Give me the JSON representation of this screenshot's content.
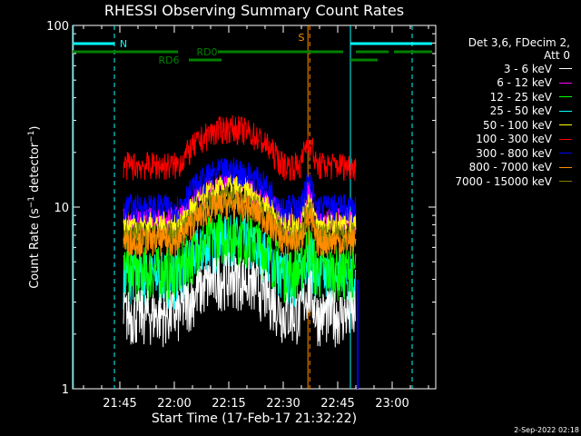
{
  "chart_data": {
    "type": "line",
    "title": "RHESSI Observing Summary Count Rates",
    "xlabel": "Start Time (17-Feb-17 21:32:22)",
    "ylabel": "Count Rate (s",
    "ylabel_sup": "−1",
    "ylabel_tail": " detector",
    "ylabel_sup2": "−1",
    "ylabel_end": ")",
    "yscale": "log",
    "ylim": [
      1,
      100
    ],
    "yticks": [
      "1",
      "10",
      "100"
    ],
    "xlim": [
      "21:32",
      "23:12"
    ],
    "xticks": [
      "21:45",
      "22:00",
      "22:15",
      "22:30",
      "22:45",
      "23:00"
    ],
    "legend_header": [
      "Det 3,6, FDecim 2,",
      "Att 0"
    ],
    "series": [
      {
        "name": "3 - 6 keV",
        "color": "#ffffff",
        "base": 2.6
      },
      {
        "name": "6 - 12 keV",
        "color": "#ff00ff",
        "base": 8.5
      },
      {
        "name": "12 - 25 keV",
        "color": "#00ff00",
        "base": 4.5
      },
      {
        "name": "25 - 50 keV",
        "color": "#00ffff",
        "base": 4.2
      },
      {
        "name": "50 - 100 keV",
        "color": "#ffff00",
        "base": 8.0
      },
      {
        "name": "100 - 300 keV",
        "color": "#ff0000",
        "base": 17
      },
      {
        "name": "300 - 800 keV",
        "color": "#0000ff",
        "base": 10
      },
      {
        "name": "800 - 7000 keV",
        "color": "#ff8c00",
        "base": 6.5
      },
      {
        "name": "7000 - 15000 keV",
        "color": "#808000",
        "base": 7.0
      }
    ],
    "flags": [
      {
        "label": "N",
        "color": "#00ffff"
      },
      {
        "label": "RD0",
        "color": "#008000"
      },
      {
        "label": "RD6",
        "color": "#008000"
      },
      {
        "label": "S",
        "color": "#ff8c00"
      }
    ]
  },
  "footer_date": "2-Sep-2022 02:18"
}
